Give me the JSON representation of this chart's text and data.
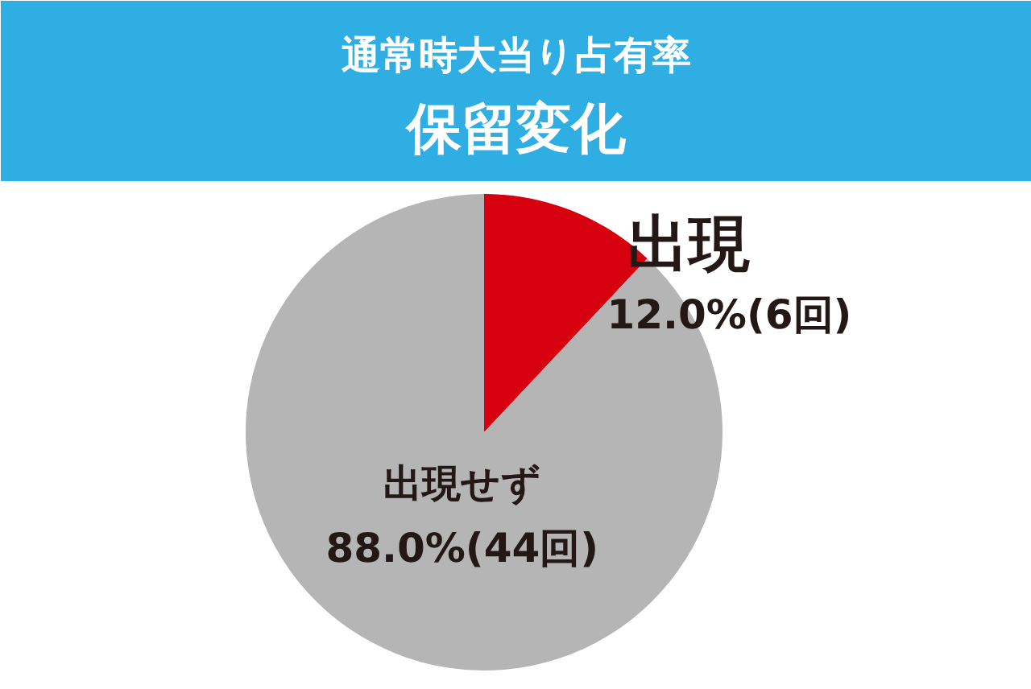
{
  "chart_data": {
    "type": "pie",
    "title": "通常時大当り占有率",
    "subtitle": "保留変化",
    "categories": [
      "出現",
      "出現せず"
    ],
    "values": [
      12.0,
      88.0
    ],
    "colors": [
      "#d7000f",
      "#b5b5b6"
    ],
    "value_labels": [
      "12.0%(6回)",
      "88.0%(44回)"
    ]
  }
}
